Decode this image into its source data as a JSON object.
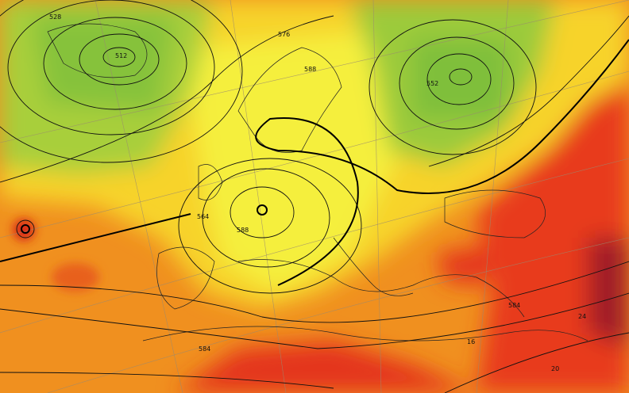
{
  "map": {
    "contour_labels": [
      "528",
      "512",
      "552",
      "588",
      "576",
      "564",
      "588",
      "584",
      "584",
      "16",
      "24",
      "20"
    ]
  }
}
